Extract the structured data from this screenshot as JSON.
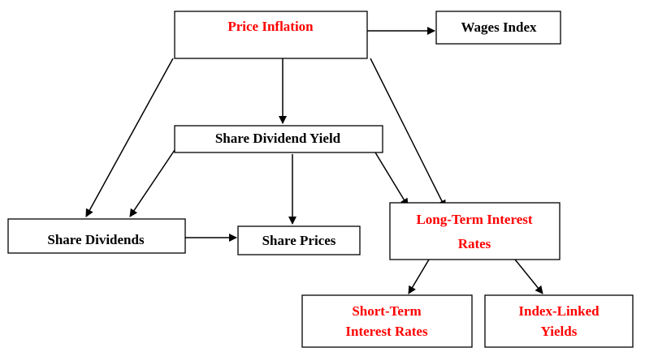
{
  "nodes": [
    {
      "lines": [
        "Price Inflation"
      ]
    },
    {
      "lines": [
        "Wages Index"
      ]
    },
    {
      "lines": [
        "Share Dividend Yield"
      ]
    },
    {
      "lines": [
        "Share Dividends"
      ]
    },
    {
      "lines": [
        "Share Prices"
      ]
    },
    {
      "lines": [
        "Long-Term Interest",
        "Rates"
      ]
    },
    {
      "lines": [
        "Short-Term",
        "Interest Rates"
      ]
    },
    {
      "lines": [
        "Index-Linked",
        "Yields"
      ]
    }
  ]
}
